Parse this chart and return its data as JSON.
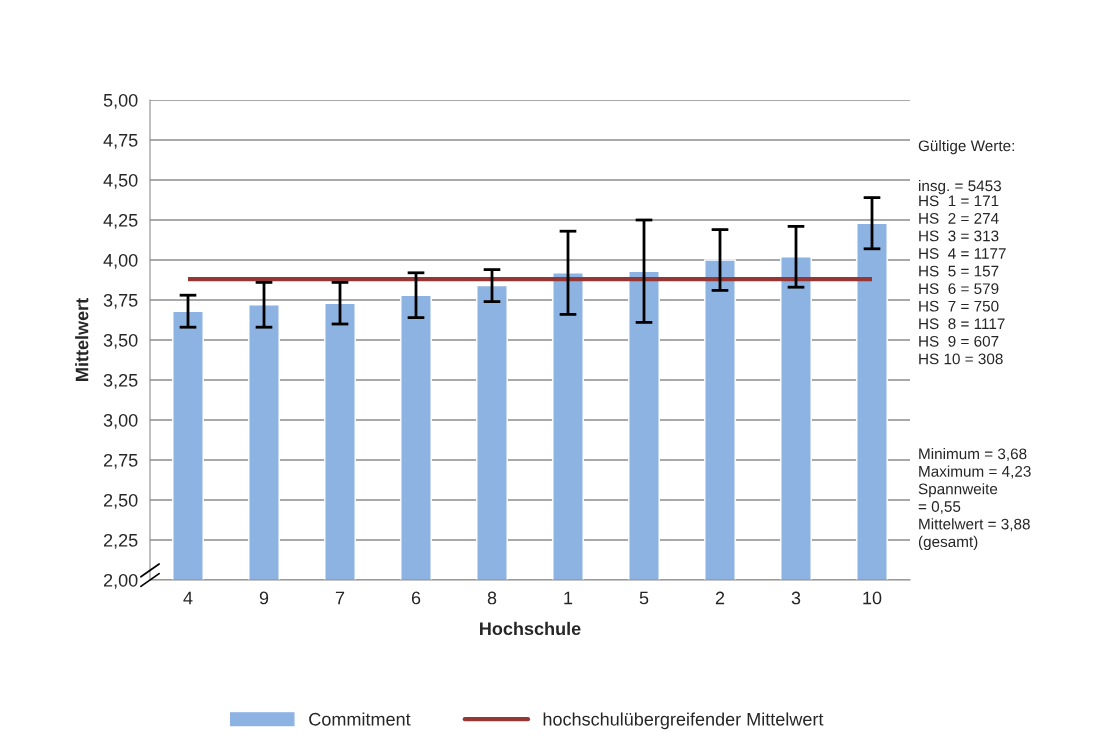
{
  "chart_data": {
    "type": "bar",
    "xlabel": "Hochschule",
    "ylabel": "Mittelwert",
    "categories": [
      "4",
      "9",
      "7",
      "6",
      "8",
      "1",
      "5",
      "2",
      "3",
      "10"
    ],
    "series": [
      {
        "name": "Commitment",
        "color": "#8db3e2",
        "values": [
          3.68,
          3.72,
          3.73,
          3.78,
          3.84,
          3.92,
          3.93,
          4.0,
          4.02,
          4.23
        ],
        "errors": [
          0.1,
          0.14,
          0.13,
          0.14,
          0.1,
          0.26,
          0.32,
          0.19,
          0.19,
          0.16
        ]
      }
    ],
    "ref_lines": [
      {
        "axis": "y",
        "value": 3.88,
        "label": "hochschulübergreifender Mittelwert",
        "color": "#953735"
      }
    ],
    "ylim": [
      2.0,
      5.0
    ],
    "yticks": [
      {
        "value": 2.0,
        "label": "2,00"
      },
      {
        "value": 2.25,
        "label": "2,25"
      },
      {
        "value": 2.5,
        "label": "2,50"
      },
      {
        "value": 2.75,
        "label": "2,75"
      },
      {
        "value": 3.0,
        "label": "3,00"
      },
      {
        "value": 3.25,
        "label": "3,25"
      },
      {
        "value": 3.5,
        "label": "3,50"
      },
      {
        "value": 3.75,
        "label": "3,75"
      },
      {
        "value": 4.0,
        "label": "4,00"
      },
      {
        "value": 4.25,
        "label": "4,25"
      },
      {
        "value": 4.5,
        "label": "4,50"
      },
      {
        "value": 4.75,
        "label": "4,75"
      },
      {
        "value": 5.0,
        "label": "5,00"
      }
    ],
    "grid": "y",
    "legend": "bottom",
    "annotations": [
      "Gültige Werte:",
      "insg. = 5453",
      "HS  1 = 171\nHS  2 = 274\nHS  3 = 313\nHS  4 = 1177\nHS  5 = 157\nHS  6 = 579\nHS  7 = 750\nHS  8 = 1117\nHS  9 = 607\nHS 10 = 308",
      "Minimum = 3,68\nMaximum = 4,23\nSpannweite\n= 0,55\nMittelwert = 3,88\n(gesamt)"
    ]
  }
}
